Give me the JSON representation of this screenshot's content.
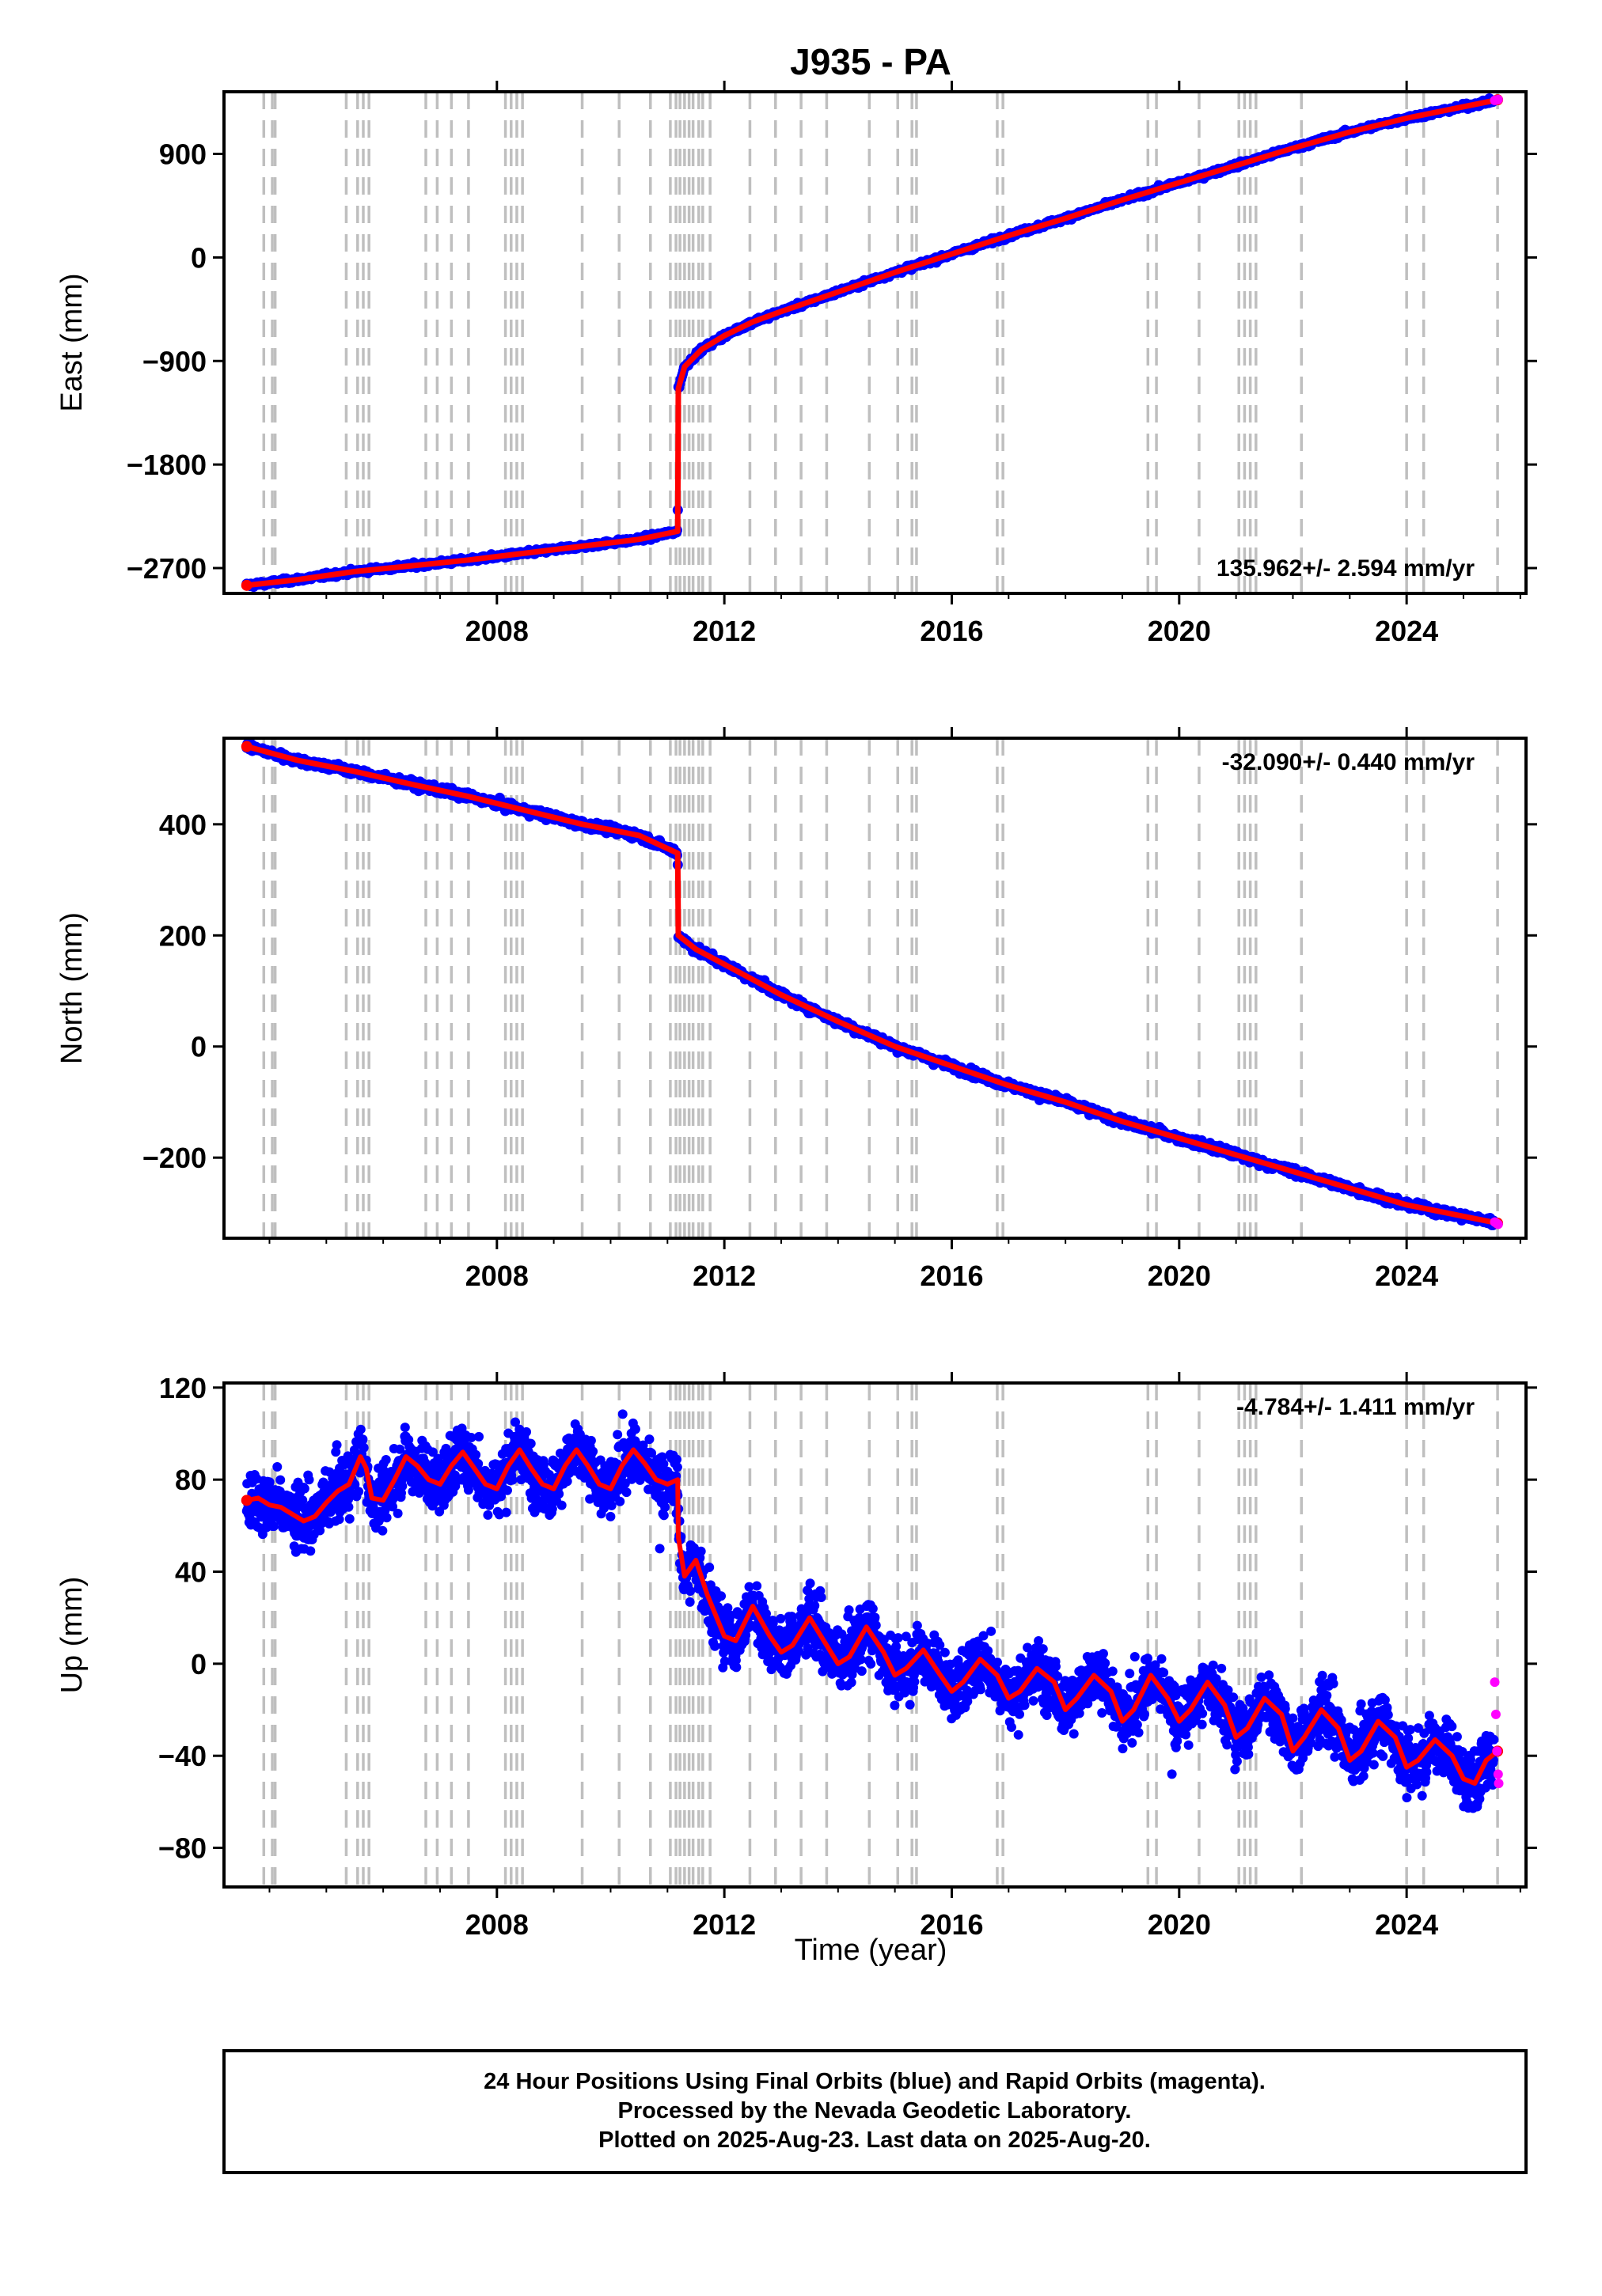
{
  "title": "J935 - PA",
  "xlabel": "Time (year)",
  "colors": {
    "final_orbit_points": "#0000ff",
    "rapid_orbit_points": "#ff00ff",
    "model_line": "#ff0000",
    "breaks": "#bfbfbf"
  },
  "chart_data": [
    {
      "type": "scatter",
      "panel": "east",
      "ylabel": "East (mm)",
      "xlim": [
        2003.2,
        2026.1
      ],
      "ylim": [
        -2920,
        1440
      ],
      "yticks": [
        "900",
        "0",
        "-900",
        "-1800",
        "-2700"
      ],
      "ytick_values": [
        900,
        0,
        -900,
        -1800,
        -2700
      ],
      "xticks": [
        "2008",
        "2012",
        "2016",
        "2020",
        "2024"
      ],
      "xtick_values": [
        2008,
        2012,
        2016,
        2020,
        2024
      ],
      "annotation": "135.962+/- 2.594 mm/yr",
      "annotation_position": "bottom-right",
      "model_series": {
        "name": "model",
        "x": [
          2003.6,
          2004.5,
          2005.5,
          2006.5,
          2007.5,
          2008.5,
          2009.5,
          2010.5,
          2011.18,
          2011.19,
          2011.3,
          2011.6,
          2012.0,
          2012.5,
          2013.0,
          2014.0,
          2015.0,
          2016.0,
          2017.0,
          2018.0,
          2019.0,
          2020.0,
          2021.0,
          2022.0,
          2023.0,
          2024.0,
          2025.6
        ],
        "y": [
          -2850,
          -2800,
          -2730,
          -2680,
          -2630,
          -2570,
          -2510,
          -2450,
          -2380,
          -1140,
          -950,
          -800,
          -680,
          -560,
          -470,
          -300,
          -130,
          30,
          190,
          340,
          500,
          650,
          800,
          950,
          1090,
          1210,
          1370
        ]
      },
      "rapid_series": {
        "name": "rapid",
        "x": [
          2025.55,
          2025.58,
          2025.61
        ],
        "y": [
          1365,
          1368,
          1372
        ]
      }
    },
    {
      "type": "scatter",
      "panel": "north",
      "ylabel": "North (mm)",
      "xlim": [
        2003.2,
        2026.1
      ],
      "ylim": [
        -345,
        555
      ],
      "yticks": [
        "400",
        "200",
        "0",
        "-200"
      ],
      "ytick_values": [
        400,
        200,
        0,
        -200
      ],
      "xticks": [
        "2008",
        "2012",
        "2016",
        "2020",
        "2024"
      ],
      "xtick_values": [
        2008,
        2012,
        2016,
        2020,
        2024
      ],
      "annotation": "-32.090+/- 0.440 mm/yr",
      "annotation_position": "top-right",
      "model_series": {
        "name": "model",
        "x": [
          2003.6,
          2004.5,
          2005.5,
          2006.5,
          2007.5,
          2008.5,
          2009.5,
          2010.5,
          2011.18,
          2011.19,
          2011.5,
          2012.0,
          2013.0,
          2014.0,
          2015.0,
          2016.0,
          2017.0,
          2018.0,
          2019.0,
          2020.0,
          2021.0,
          2022.0,
          2023.0,
          2024.0,
          2025.6
        ],
        "y": [
          540,
          515,
          495,
          472,
          450,
          425,
          400,
          380,
          348,
          200,
          175,
          148,
          93,
          45,
          0,
          -35,
          -70,
          -100,
          -135,
          -165,
          -195,
          -225,
          -255,
          -285,
          -318
        ]
      },
      "rapid_series": {
        "name": "rapid",
        "x": [
          2025.55,
          2025.58,
          2025.61
        ],
        "y": [
          -316,
          -318,
          -320
        ]
      }
    },
    {
      "type": "scatter",
      "panel": "up",
      "ylabel": "Up (mm)",
      "xlim": [
        2003.2,
        2026.1
      ],
      "ylim": [
        -97,
        122
      ],
      "yticks": [
        "120",
        "80",
        "40",
        "0",
        "-40",
        "-80"
      ],
      "ytick_values": [
        120,
        80,
        40,
        0,
        -40,
        -80
      ],
      "xticks": [
        "2008",
        "2012",
        "2016",
        "2020",
        "2024"
      ],
      "xtick_values": [
        2008,
        2012,
        2016,
        2020,
        2024
      ],
      "annotation": "-4.784+/- 1.411 mm/yr",
      "annotation_position": "top-right",
      "model_series": {
        "name": "model",
        "x": [
          2003.6,
          2003.8,
          2004.0,
          2004.2,
          2004.4,
          2004.6,
          2004.8,
          2005.0,
          2005.2,
          2005.4,
          2005.6,
          2005.7,
          2005.8,
          2006.0,
          2006.2,
          2006.4,
          2006.6,
          2006.8,
          2007.0,
          2007.2,
          2007.4,
          2007.6,
          2007.8,
          2008.0,
          2008.2,
          2008.4,
          2008.6,
          2008.8,
          2009.0,
          2009.2,
          2009.4,
          2009.6,
          2009.8,
          2010.0,
          2010.2,
          2010.4,
          2010.6,
          2010.8,
          2011.0,
          2011.18,
          2011.19,
          2011.3,
          2011.5,
          2011.7,
          2012.0,
          2012.2,
          2012.5,
          2012.8,
          2013.0,
          2013.2,
          2013.5,
          2013.8,
          2014.0,
          2014.2,
          2014.5,
          2014.8,
          2015.0,
          2015.2,
          2015.5,
          2015.8,
          2016.0,
          2016.2,
          2016.5,
          2016.8,
          2017.0,
          2017.2,
          2017.5,
          2017.8,
          2018.0,
          2018.2,
          2018.5,
          2018.8,
          2019.0,
          2019.2,
          2019.5,
          2019.8,
          2020.0,
          2020.2,
          2020.5,
          2020.8,
          2021.0,
          2021.2,
          2021.5,
          2021.8,
          2022.0,
          2022.2,
          2022.5,
          2022.8,
          2023.0,
          2023.2,
          2023.5,
          2023.8,
          2024.0,
          2024.2,
          2024.5,
          2024.8,
          2025.0,
          2025.2,
          2025.4,
          2025.6
        ],
        "y": [
          71,
          72,
          69,
          68,
          65,
          62,
          64,
          70,
          75,
          78,
          90,
          85,
          72,
          71,
          80,
          90,
          86,
          80,
          78,
          86,
          92,
          85,
          78,
          76,
          86,
          93,
          85,
          78,
          76,
          86,
          93,
          86,
          78,
          76,
          86,
          93,
          87,
          80,
          78,
          80,
          55,
          38,
          45,
          30,
          12,
          10,
          25,
          12,
          5,
          8,
          20,
          8,
          0,
          3,
          16,
          5,
          -5,
          -2,
          6,
          -5,
          -12,
          -8,
          2,
          -5,
          -15,
          -12,
          -2,
          -8,
          -20,
          -15,
          -5,
          -12,
          -25,
          -20,
          -5,
          -15,
          -25,
          -20,
          -8,
          -18,
          -32,
          -28,
          -15,
          -22,
          -38,
          -32,
          -20,
          -28,
          -42,
          -38,
          -25,
          -32,
          -45,
          -42,
          -33,
          -40,
          -50,
          -52,
          -42,
          -38
        ],
        "line_x_end": 2025.6
      },
      "rapid_series": {
        "name": "rapid",
        "x": [
          2025.55,
          2025.57,
          2025.59,
          2025.61,
          2025.62
        ],
        "y": [
          -8,
          -22,
          -38,
          -48,
          -52
        ]
      }
    }
  ],
  "breaks": [
    2003.9,
    2004.05,
    2004.1,
    2005.35,
    2005.55,
    2005.65,
    2005.75,
    2006.75,
    2006.95,
    2007.2,
    2007.5,
    2008.15,
    2008.25,
    2008.35,
    2008.45,
    2009.5,
    2010.15,
    2010.7,
    2011.05,
    2011.15,
    2011.22,
    2011.3,
    2011.38,
    2011.45,
    2011.55,
    2011.62,
    2011.75,
    2012.45,
    2012.9,
    2013.35,
    2013.8,
    2014.55,
    2015.05,
    2015.3,
    2015.38,
    2016.8,
    2016.9,
    2019.45,
    2019.6,
    2020.35,
    2021.05,
    2021.15,
    2021.25,
    2021.35,
    2022.15,
    2024.0,
    2024.3,
    2025.6
  ],
  "footer": {
    "line1": "24 Hour Positions Using Final Orbits (blue) and Rapid Orbits (magenta).",
    "line2": "Processed by the Nevada Geodetic Laboratory.",
    "line3": "Plotted on 2025-Aug-23. Last data on 2025-Aug-20."
  }
}
